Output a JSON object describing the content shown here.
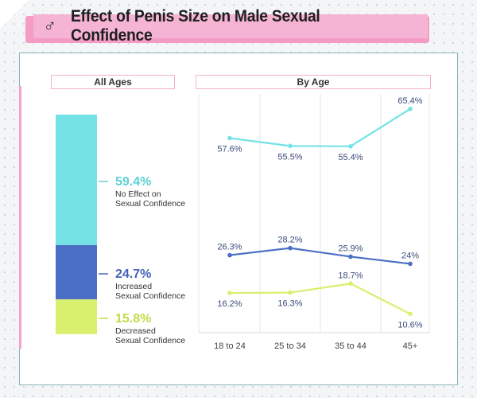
{
  "header": {
    "title": "Effect of Penis Size on Male Sexual Confidence",
    "icon": "male-symbol-icon"
  },
  "sections": {
    "all_ages": "All Ages",
    "by_age": "By Age"
  },
  "colors": {
    "no_effect": "#74e3e6",
    "increased": "#4a6fc4",
    "decreased": "#d9ef6e",
    "title_banner": "#f6b4d4",
    "no_effect_text": "#5fd1d6",
    "increased_text": "#4464b8",
    "decreased_text": "#c3db4a"
  },
  "chart_data": [
    {
      "type": "bar",
      "subtype": "stacked-100",
      "title": "All Ages",
      "segments": [
        {
          "value_label": "59.4%",
          "value": 59.4,
          "label_line1": "No Effect on",
          "label_line2": "Sexual Confidence"
        },
        {
          "value_label": "24.7%",
          "value": 24.7,
          "label_line1": "Increased",
          "label_line2": "Sexual Confidence"
        },
        {
          "value_label": "15.8%",
          "value": 15.8,
          "label_line1": "Decreased",
          "label_line2": "Sexual Confidence"
        }
      ]
    },
    {
      "type": "line",
      "title": "By Age",
      "categories": [
        "18 to 24",
        "25 to 34",
        "35 to 44",
        "45+"
      ],
      "series": [
        {
          "key": "no_effect",
          "values": [
            57.6,
            55.5,
            55.4,
            65.4
          ],
          "labels": [
            "57.6%",
            "55.5%",
            "55.4%",
            "65.4%"
          ]
        },
        {
          "key": "increased",
          "values": [
            26.3,
            28.2,
            25.9,
            24
          ],
          "labels": [
            "26.3%",
            "28.2%",
            "25.9%",
            "24%"
          ]
        },
        {
          "key": "decreased",
          "values": [
            16.2,
            16.3,
            18.7,
            10.6
          ],
          "labels": [
            "16.2%",
            "16.3%",
            "18.7%",
            "10.6%"
          ]
        }
      ],
      "grid": "vertical"
    }
  ]
}
